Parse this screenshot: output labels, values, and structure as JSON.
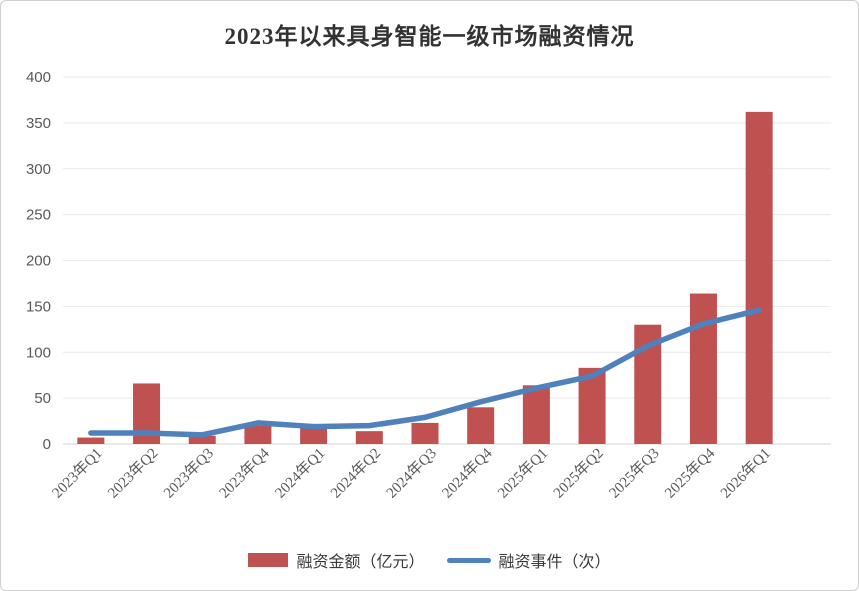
{
  "title": "2023年以来具身智能一级市场融资情况",
  "legend": {
    "bar_label": "融资金额（亿元）",
    "line_label": "融资事件（次）"
  },
  "colors": {
    "bar": "#BF5151",
    "line": "#4F81BD",
    "title_text": "#333333",
    "axis_text": "#595959",
    "gridline": "#E9E9E9",
    "axis_line": "#D6D6D6"
  },
  "chart_data": {
    "type": "bar",
    "combo": "bar+line",
    "title": "2023年以来具身智能一级市场融资情况",
    "categories": [
      "2023年Q1",
      "2023年Q2",
      "2023年Q3",
      "2023年Q4",
      "2024年Q1",
      "2024年Q2",
      "2024年Q3",
      "2024年Q4",
      "2025年Q1",
      "2025年Q2",
      "2025年Q3",
      "2025年Q4",
      "2026年Q1"
    ],
    "series": [
      {
        "name": "融资金额（亿元）",
        "type": "bar",
        "values": [
          7,
          66,
          9,
          20,
          17,
          14,
          23,
          40,
          64,
          83,
          130,
          164,
          362
        ]
      },
      {
        "name": "融资事件（次）",
        "type": "line",
        "values": [
          12,
          12,
          10,
          23,
          19,
          20,
          29,
          46,
          61,
          74,
          107,
          131,
          146
        ]
      }
    ],
    "xlabel": "",
    "ylabel": "",
    "ylim": [
      0,
      400
    ],
    "ytick_step": 50,
    "yticks": [
      0,
      50,
      100,
      150,
      200,
      250,
      300,
      350,
      400
    ],
    "grid": true,
    "x_tick_rotation": 45,
    "legend_position": "bottom"
  }
}
